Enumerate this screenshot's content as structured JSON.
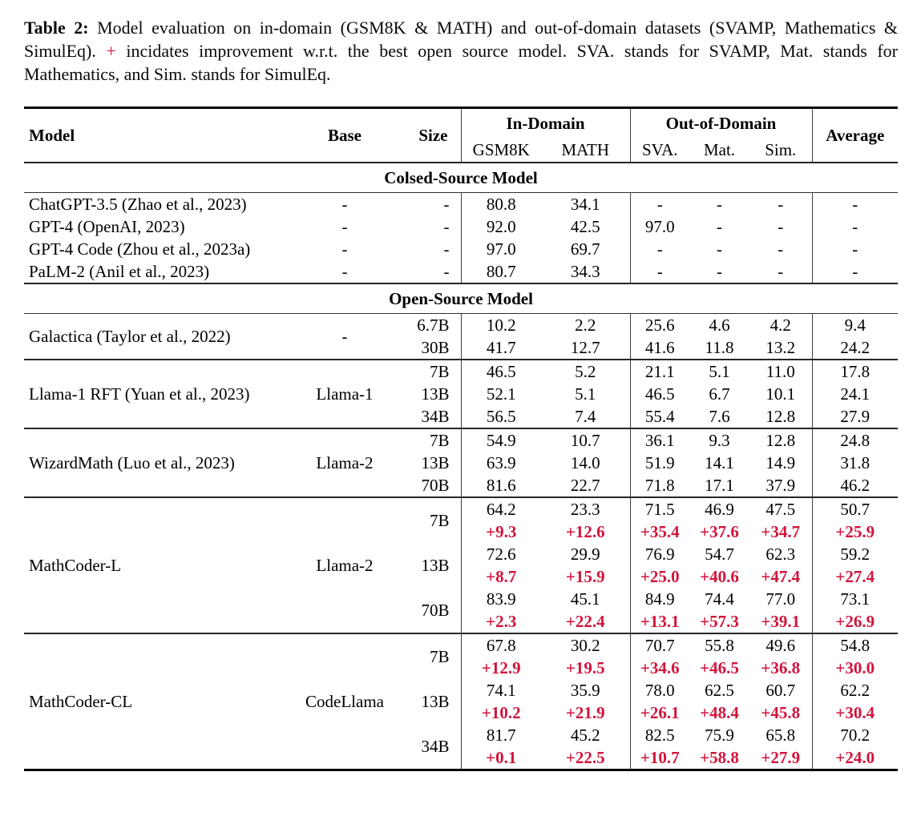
{
  "colors": {
    "accent_red": "#d2143c",
    "text": "#000000",
    "rule": "#262626"
  },
  "caption": {
    "label": "Table 2:",
    "part1": "Model evaluation on in-domain (GSM8K & MATH) and out-of-domain datasets (SVAMP, Mathematics & SimulEq).",
    "plus": "+",
    "part2": "incidates improvement w.r.t. the best open source model. SVA. stands for SVAMP, Mat. stands for Mathematics, and Sim. stands for SimulEq."
  },
  "table": {
    "header": {
      "model": "Model",
      "base": "Base",
      "size": "Size",
      "in_domain": "In-Domain",
      "out_of_domain": "Out-of-Domain",
      "average": "Average",
      "sub": [
        "GSM8K",
        "MATH",
        "SVA.",
        "Mat.",
        "Sim."
      ]
    },
    "sections": [
      {
        "title": "Colsed-Source Model",
        "blocks": [
          {
            "models": [
              {
                "model": "ChatGPT-3.5 (Zhao et al., 2023)",
                "base": "-",
                "rows": [
                  {
                    "size": "-",
                    "scores": [
                      "80.8",
                      "34.1",
                      "-",
                      "-",
                      "-",
                      "-"
                    ]
                  }
                ]
              },
              {
                "model": "GPT-4 (OpenAI, 2023)",
                "base": "-",
                "rows": [
                  {
                    "size": "-",
                    "scores": [
                      "92.0",
                      "42.5",
                      "97.0",
                      "-",
                      "-",
                      "-"
                    ]
                  }
                ]
              },
              {
                "model": "GPT-4 Code (Zhou et al., 2023a)",
                "base": "-",
                "rows": [
                  {
                    "size": "-",
                    "scores": [
                      "97.0",
                      "69.7",
                      "-",
                      "-",
                      "-",
                      "-"
                    ]
                  }
                ]
              },
              {
                "model": "PaLM-2 (Anil et al., 2023)",
                "base": "-",
                "rows": [
                  {
                    "size": "-",
                    "scores": [
                      "80.7",
                      "34.3",
                      "-",
                      "-",
                      "-",
                      "-"
                    ]
                  }
                ]
              }
            ]
          }
        ]
      },
      {
        "title": "Open-Source Model",
        "blocks": [
          {
            "models": [
              {
                "model": "Galactica (Taylor et al., 2022)",
                "base": "-",
                "rows": [
                  {
                    "size": "6.7B",
                    "scores": [
                      "10.2",
                      "2.2",
                      "25.6",
                      "4.6",
                      "4.2",
                      "9.4"
                    ]
                  },
                  {
                    "size": "30B",
                    "scores": [
                      "41.7",
                      "12.7",
                      "41.6",
                      "11.8",
                      "13.2",
                      "24.2"
                    ]
                  }
                ]
              }
            ]
          },
          {
            "models": [
              {
                "model": "Llama-1 RFT (Yuan et al., 2023)",
                "base": "Llama-1",
                "rows": [
                  {
                    "size": "7B",
                    "scores": [
                      "46.5",
                      "5.2",
                      "21.1",
                      "5.1",
                      "11.0",
                      "17.8"
                    ]
                  },
                  {
                    "size": "13B",
                    "scores": [
                      "52.1",
                      "5.1",
                      "46.5",
                      "6.7",
                      "10.1",
                      "24.1"
                    ]
                  },
                  {
                    "size": "34B",
                    "scores": [
                      "56.5",
                      "7.4",
                      "55.4",
                      "7.6",
                      "12.8",
                      "27.9"
                    ]
                  }
                ]
              }
            ]
          },
          {
            "models": [
              {
                "model": "WizardMath (Luo et al., 2023)",
                "base": "Llama-2",
                "rows": [
                  {
                    "size": "7B",
                    "scores": [
                      "54.9",
                      "10.7",
                      "36.1",
                      "9.3",
                      "12.8",
                      "24.8"
                    ]
                  },
                  {
                    "size": "13B",
                    "scores": [
                      "63.9",
                      "14.0",
                      "51.9",
                      "14.1",
                      "14.9",
                      "31.8"
                    ]
                  },
                  {
                    "size": "70B",
                    "scores": [
                      "81.6",
                      "22.7",
                      "71.8",
                      "17.1",
                      "37.9",
                      "46.2"
                    ]
                  }
                ]
              }
            ]
          },
          {
            "models": [
              {
                "model": "MathCoder-L",
                "base": "Llama-2",
                "rows": [
                  {
                    "size": "7B",
                    "scores": [
                      "64.2",
                      "23.3",
                      "71.5",
                      "46.9",
                      "47.5",
                      "50.7"
                    ],
                    "delta": [
                      "+9.3",
                      "+12.6",
                      "+35.4",
                      "+37.6",
                      "+34.7",
                      "+25.9"
                    ]
                  },
                  {
                    "size": "13B",
                    "scores": [
                      "72.6",
                      "29.9",
                      "76.9",
                      "54.7",
                      "62.3",
                      "59.2"
                    ],
                    "delta": [
                      "+8.7",
                      "+15.9",
                      "+25.0",
                      "+40.6",
                      "+47.4",
                      "+27.4"
                    ]
                  },
                  {
                    "size": "70B",
                    "scores": [
                      "83.9",
                      "45.1",
                      "84.9",
                      "74.4",
                      "77.0",
                      "73.1"
                    ],
                    "delta": [
                      "+2.3",
                      "+22.4",
                      "+13.1",
                      "+57.3",
                      "+39.1",
                      "+26.9"
                    ]
                  }
                ]
              }
            ]
          },
          {
            "models": [
              {
                "model": "MathCoder-CL",
                "base": "CodeLlama",
                "rows": [
                  {
                    "size": "7B",
                    "scores": [
                      "67.8",
                      "30.2",
                      "70.7",
                      "55.8",
                      "49.6",
                      "54.8"
                    ],
                    "delta": [
                      "+12.9",
                      "+19.5",
                      "+34.6",
                      "+46.5",
                      "+36.8",
                      "+30.0"
                    ]
                  },
                  {
                    "size": "13B",
                    "scores": [
                      "74.1",
                      "35.9",
                      "78.0",
                      "62.5",
                      "60.7",
                      "62.2"
                    ],
                    "delta": [
                      "+10.2",
                      "+21.9",
                      "+26.1",
                      "+48.4",
                      "+45.8",
                      "+30.4"
                    ]
                  },
                  {
                    "size": "34B",
                    "scores": [
                      "81.7",
                      "45.2",
                      "82.5",
                      "75.9",
                      "65.8",
                      "70.2"
                    ],
                    "delta": [
                      "+0.1",
                      "+22.5",
                      "+10.7",
                      "+58.8",
                      "+27.9",
                      "+24.0"
                    ]
                  }
                ]
              }
            ]
          }
        ]
      }
    ]
  }
}
